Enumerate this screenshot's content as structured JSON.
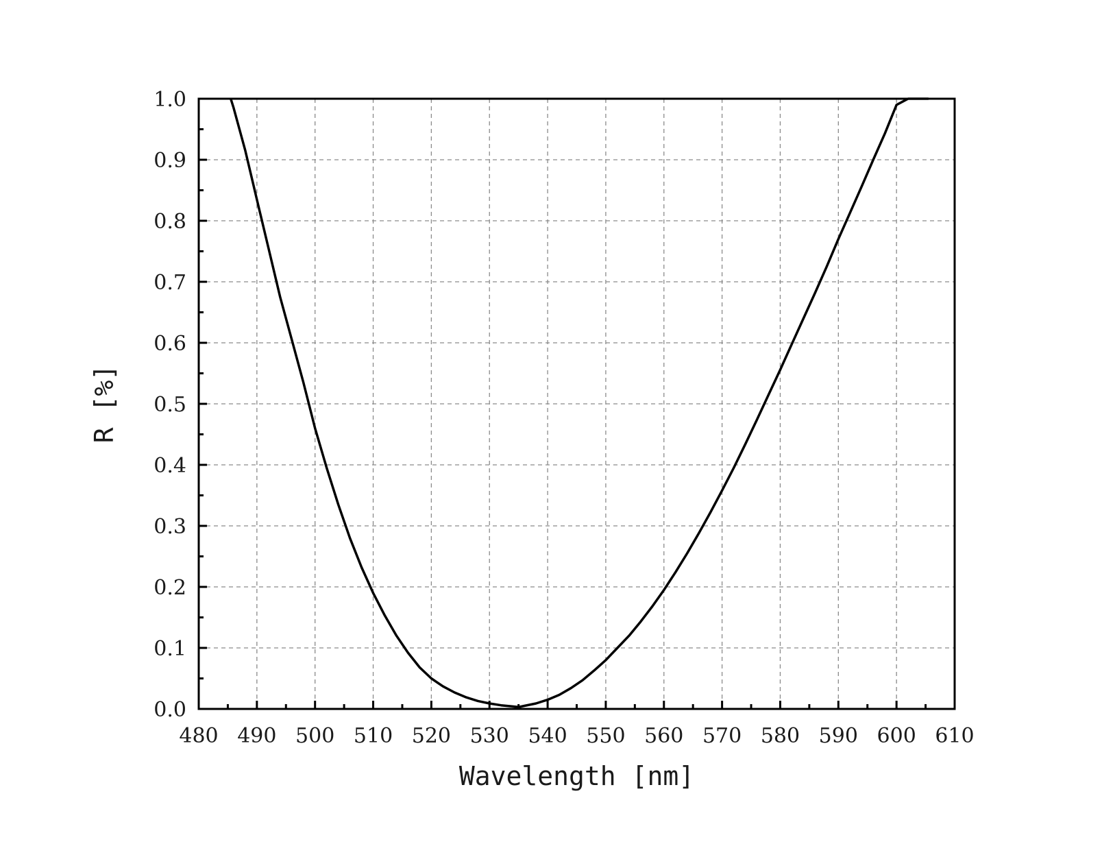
{
  "chart_data": {
    "type": "line",
    "title": "",
    "xlabel": "Wavelength [nm]",
    "ylabel": "R [%]",
    "xlim": [
      480,
      610
    ],
    "ylim": [
      0.0,
      1.0
    ],
    "x_ticks": [
      480,
      490,
      500,
      510,
      520,
      530,
      540,
      550,
      560,
      570,
      580,
      590,
      600,
      610
    ],
    "x_tick_labels": [
      "480",
      "490",
      "500",
      "510",
      "520",
      "530",
      "540",
      "550",
      "560",
      "570",
      "580",
      "590",
      "600",
      "610"
    ],
    "y_ticks": [
      0.0,
      0.1,
      0.2,
      0.3,
      0.4,
      0.5,
      0.6,
      0.7,
      0.8,
      0.9,
      1.0
    ],
    "y_tick_labels": [
      "0.0",
      "0.1",
      "0.2",
      "0.3",
      "0.4",
      "0.5",
      "0.6",
      "0.7",
      "0.8",
      "0.9",
      "1.0"
    ],
    "grid": true,
    "legend": "none",
    "series": [
      {
        "color": "#000000",
        "x": [
          485.5,
          486,
          488,
          490,
          492,
          494,
          496,
          498,
          500,
          502,
          504,
          506,
          508,
          510,
          512,
          514,
          516,
          518,
          520,
          522,
          524,
          526,
          528,
          530,
          532,
          534,
          535,
          536,
          538,
          540,
          542,
          544,
          546,
          548,
          550,
          552,
          554,
          556,
          558,
          560,
          562,
          564,
          566,
          568,
          570,
          572,
          574,
          576,
          578,
          580,
          582,
          584,
          586,
          588,
          590,
          592,
          594,
          596,
          598,
          600,
          602,
          604,
          605.5
        ],
        "y": [
          1.0,
          0.985,
          0.915,
          0.835,
          0.755,
          0.675,
          0.605,
          0.535,
          0.46,
          0.395,
          0.335,
          0.28,
          0.232,
          0.19,
          0.153,
          0.12,
          0.092,
          0.068,
          0.05,
          0.037,
          0.027,
          0.019,
          0.013,
          0.009,
          0.006,
          0.004,
          0.003,
          0.005,
          0.009,
          0.015,
          0.023,
          0.034,
          0.047,
          0.063,
          0.08,
          0.1,
          0.12,
          0.143,
          0.168,
          0.195,
          0.224,
          0.255,
          0.288,
          0.322,
          0.358,
          0.395,
          0.434,
          0.474,
          0.515,
          0.556,
          0.598,
          0.64,
          0.682,
          0.725,
          0.77,
          0.813,
          0.856,
          0.9,
          0.943,
          0.99,
          1.0,
          1.0,
          1.0
        ]
      }
    ]
  }
}
